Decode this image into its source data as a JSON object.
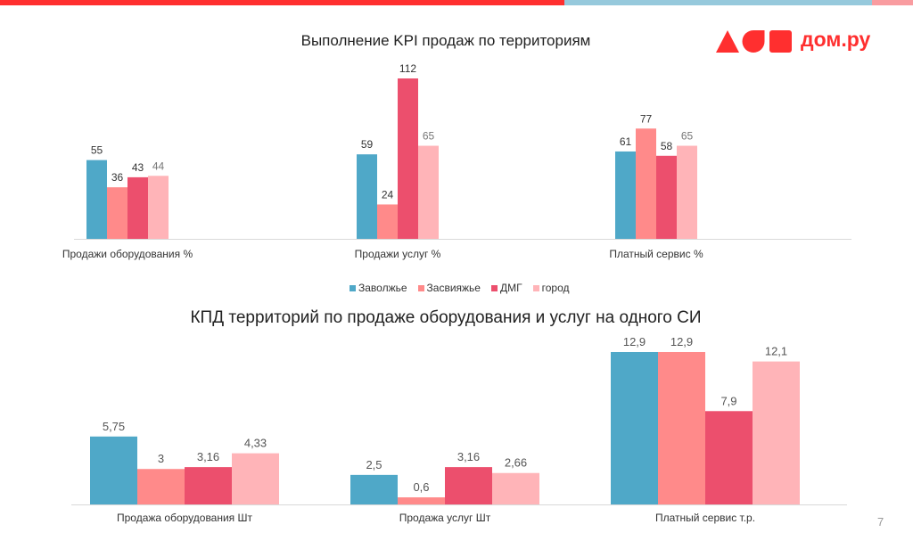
{
  "slide": {
    "page_number": "7",
    "brand": {
      "name": "дом.ру",
      "color": "#ff2f2f"
    },
    "top_bar_colors": [
      "#ff2f2f",
      "#96c9dc",
      "#f99ca0"
    ]
  },
  "legend": {
    "items": [
      {
        "label": "Заволжье",
        "color": "#4fa8c8"
      },
      {
        "label": "Засвияжье",
        "color": "#ff8a8a"
      },
      {
        "label": "ДМГ",
        "color": "#ec4f6d"
      },
      {
        "label": "город",
        "color": "#ffb4b8"
      }
    ]
  },
  "chart_data": [
    {
      "type": "bar",
      "title": "Выполнение KPI продаж по территориям",
      "xlabel": "",
      "ylabel": "",
      "categories": [
        "Продажи оборудования %",
        "Продажи услуг %",
        "Платный сервис %"
      ],
      "series": [
        {
          "name": "Заволжье",
          "color": "#4fa8c8",
          "values": [
            55,
            59,
            61
          ],
          "labels": [
            "55",
            "59",
            "61"
          ]
        },
        {
          "name": "Засвияжье",
          "color": "#ff8a8a",
          "values": [
            36,
            24,
            77
          ],
          "labels": [
            "36",
            "24",
            "77"
          ]
        },
        {
          "name": "ДМГ",
          "color": "#ec4f6d",
          "values": [
            43,
            112,
            58
          ],
          "labels": [
            "43",
            "112",
            "58"
          ]
        },
        {
          "name": "город",
          "color": "#ffb4b8",
          "values": [
            44,
            65,
            65
          ],
          "labels": [
            "44",
            "65",
            "65"
          ]
        }
      ],
      "ylim": [
        0,
        112
      ],
      "grid": false,
      "legend_position": "bottom"
    },
    {
      "type": "bar",
      "title": "КПД территорий по продаже оборудования и услуг на одного СИ",
      "xlabel": "",
      "ylabel": "",
      "categories": [
        "Продажа оборудования Шт",
        "Продажа услуг Шт",
        "Платный сервис т.р."
      ],
      "series": [
        {
          "name": "Заволжье",
          "color": "#4fa8c8",
          "values": [
            5.75,
            2.5,
            12.9
          ],
          "labels": [
            "5,75",
            "2,5",
            "12,9"
          ]
        },
        {
          "name": "Засвияжье",
          "color": "#ff8a8a",
          "values": [
            3,
            0.6,
            12.9
          ],
          "labels": [
            "3",
            "0,6",
            "12,9"
          ]
        },
        {
          "name": "ДМГ",
          "color": "#ec4f6d",
          "values": [
            3.16,
            3.16,
            7.9
          ],
          "labels": [
            "3,16",
            "3,16",
            "7,9"
          ]
        },
        {
          "name": "город",
          "color": "#ffb4b8",
          "values": [
            4.33,
            2.66,
            12.1
          ],
          "labels": [
            "4,33",
            "2,66",
            "12,1"
          ]
        }
      ],
      "ylim": [
        0,
        12.9
      ],
      "grid": false,
      "legend_position": "none"
    }
  ]
}
